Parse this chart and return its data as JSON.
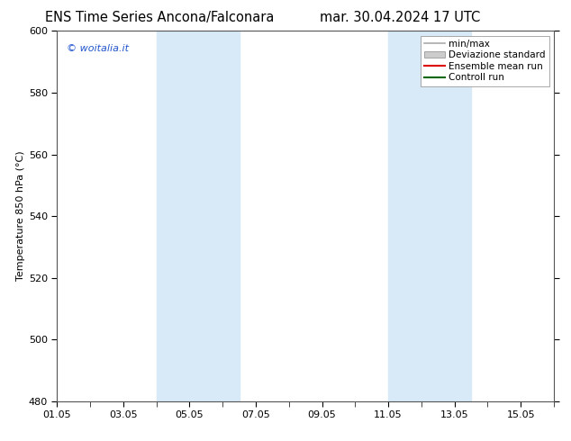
{
  "title_left": "ENS Time Series Ancona/Falconara",
  "title_right": "mar. 30.04.2024 17 UTC",
  "ylabel": "Temperature 850 hPa (°C)",
  "ylim": [
    480,
    600
  ],
  "yticks": [
    480,
    500,
    520,
    540,
    560,
    580,
    600
  ],
  "xlim": [
    0,
    15
  ],
  "xtick_labels": [
    "01.05",
    "03.05",
    "05.05",
    "07.05",
    "09.05",
    "11.05",
    "13.05",
    "15.05"
  ],
  "xtick_positions": [
    0,
    2,
    4,
    6,
    8,
    10,
    12,
    14
  ],
  "shade_bands": [
    {
      "x_start": 3.0,
      "x_end": 5.5,
      "color": "#d8eaf7"
    },
    {
      "x_start": 10.0,
      "x_end": 12.5,
      "color": "#d8eaf7"
    }
  ],
  "watermark": "© woitalia.it",
  "watermark_color": "#2255cc",
  "legend_entries": [
    {
      "label": "min/max",
      "color": "#aaaaaa",
      "lw": 1.2,
      "type": "line"
    },
    {
      "label": "Deviazione standard",
      "color": "#cccccc",
      "type": "patch"
    },
    {
      "label": "Ensemble mean run",
      "color": "#dd0000",
      "lw": 1.5,
      "type": "line"
    },
    {
      "label": "Controll run",
      "color": "#006600",
      "lw": 1.5,
      "type": "line"
    }
  ],
  "background_color": "#ffffff",
  "plot_bg_color": "#ffffff",
  "title_fontsize": 10.5,
  "ylabel_fontsize": 8,
  "tick_fontsize": 8,
  "legend_fontsize": 7.5,
  "watermark_fontsize": 8
}
